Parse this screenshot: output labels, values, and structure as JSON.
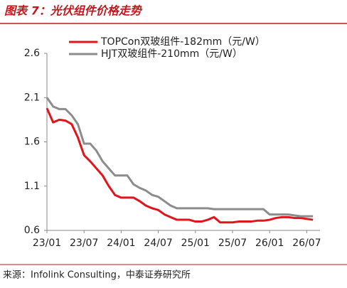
{
  "chart_data": {
    "type": "line",
    "title": "图表 7：光伏组件价格走势",
    "source": "来源：Infolink Consulting，中泰证券研究所",
    "categories": [
      "23/01",
      null,
      null,
      null,
      null,
      null,
      "23/07",
      null,
      null,
      null,
      null,
      null,
      "24/01",
      null,
      null,
      null,
      null,
      null,
      "24/07",
      null,
      null,
      null,
      null,
      null,
      "25/01",
      null,
      null,
      null,
      null,
      null,
      "25/07",
      null,
      null,
      null,
      null,
      null,
      "26/01",
      null,
      null,
      null,
      null,
      null,
      "26/07",
      null
    ],
    "series": [
      {
        "name": "TOPCon双玻组件-182mm（元/W）",
        "color": "#e0141b",
        "values": [
          1.98,
          1.82,
          1.85,
          1.84,
          1.8,
          1.65,
          1.45,
          1.38,
          1.3,
          1.22,
          1.1,
          1.0,
          0.97,
          0.97,
          0.97,
          0.93,
          0.88,
          0.85,
          0.83,
          0.78,
          0.75,
          0.72,
          0.72,
          0.72,
          0.7,
          0.7,
          0.72,
          0.75,
          0.69,
          0.69,
          0.69,
          0.7,
          0.7,
          0.7,
          0.71,
          0.71,
          0.72,
          0.74,
          0.75,
          0.75,
          0.74,
          0.74,
          0.73,
          0.72
        ]
      },
      {
        "name": "HJT双玻组件-210mm（元/W）",
        "color": "#8c8c8c",
        "values": [
          2.1,
          2.0,
          1.97,
          1.97,
          1.9,
          1.8,
          1.58,
          1.58,
          1.5,
          1.38,
          1.3,
          1.22,
          1.22,
          1.22,
          1.12,
          1.08,
          1.05,
          1.0,
          0.98,
          0.93,
          0.88,
          0.85,
          0.85,
          0.85,
          0.85,
          0.85,
          0.85,
          0.84,
          0.84,
          0.84,
          0.84,
          0.84,
          0.84,
          0.84,
          0.84,
          0.84,
          0.78,
          0.78,
          0.78,
          0.78,
          0.77,
          0.76,
          0.76,
          0.76
        ]
      }
    ],
    "ylim": [
      0.6,
      2.6
    ],
    "yticks": [
      0.6,
      1.1,
      1.6,
      2.1,
      2.6
    ],
    "grid": false
  }
}
